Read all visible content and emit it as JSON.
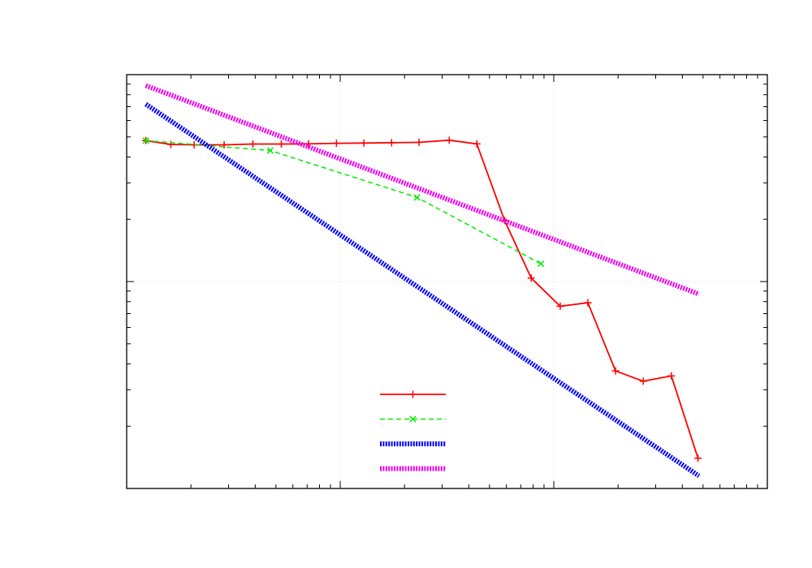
{
  "chart_data": {
    "type": "line",
    "title": "",
    "xlabel": "",
    "ylabel": "",
    "x_scale": "log",
    "y_scale": "log",
    "xlim": [
      1,
      1000
    ],
    "ylim": [
      0.001,
      0.1
    ],
    "grid": true,
    "legend_position": "bottom-center",
    "series": [
      {
        "style": "solid-plus",
        "color": "#ff0000",
        "x": [
          1.23,
          1.61,
          2.07,
          2.86,
          3.9,
          5.3,
          7.1,
          9.6,
          12.9,
          17.4,
          23.4,
          32.4,
          43.6,
          58.9,
          78.4,
          107.2,
          144.4,
          194.6,
          262.4,
          355.2,
          473.5
        ],
        "y": [
          0.048,
          0.046,
          0.0458,
          0.0458,
          0.0462,
          0.0462,
          0.0463,
          0.0466,
          0.0467,
          0.0469,
          0.0471,
          0.0482,
          0.0463,
          0.0197,
          0.0104,
          0.0076,
          0.0079,
          0.0037,
          0.0033,
          0.0035,
          0.0014
        ]
      },
      {
        "style": "dashed-x",
        "color": "#00ee00",
        "x": [
          1.23,
          4.7,
          22.9,
          87.0
        ],
        "y": [
          0.048,
          0.043,
          0.0255,
          0.0122
        ]
      },
      {
        "style": "thick-dotted",
        "color": "#0000ff",
        "x": [
          1.23,
          478.0
        ],
        "y": [
          0.072,
          0.00115
        ]
      },
      {
        "style": "thick-dotted",
        "color": "#ee00ee",
        "x": [
          1.23,
          478.0
        ],
        "y": [
          0.0885,
          0.0087
        ]
      }
    ]
  }
}
